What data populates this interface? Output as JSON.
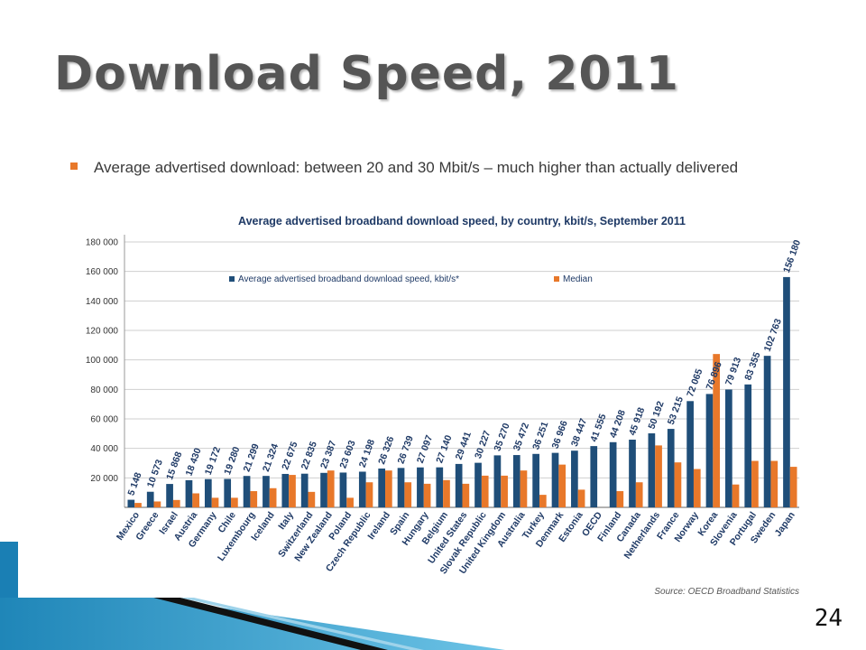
{
  "slide": {
    "title": "Download Speed, 2011",
    "bullet": "Average advertised download: between 20 and 30 Mbit/s – much higher than actually delivered",
    "page_number": "24"
  },
  "colors": {
    "average": "#1f4e79",
    "median": "#e8782a",
    "bullet": "#e8782a"
  },
  "chart_data": {
    "type": "bar",
    "title": "Average advertised broadband download speed, by country, kbit/s, September 2011",
    "source": "Source:  OECD Broadband Statistics",
    "legend_position": "top-center",
    "ylim": [
      0,
      180000
    ],
    "yticks": [
      "180 000",
      "160 000",
      "140 000",
      "120 000",
      "100 000",
      "80 000",
      "60 000",
      "40 000",
      "20 000"
    ],
    "categories": [
      "Mexico",
      "Greece",
      "Israel",
      "Austria",
      "Germany",
      "Chile",
      "Luxembourg",
      "Iceland",
      "Italy",
      "Switzerland",
      "New Zealand",
      "Poland",
      "Czech Republic",
      "Ireland",
      "Spain",
      "Hungary",
      "Belgium",
      "United States",
      "Slovak Republic",
      "United Kingdom",
      "Australia",
      "Turkey",
      "Denmark",
      "Estonia",
      "OECD",
      "Finland",
      "Canada",
      "Netherlands",
      "France",
      "Norway",
      "Korea",
      "Slovenia",
      "Portugal",
      "Sweden",
      "Japan"
    ],
    "series": [
      {
        "name": "Average advertised broadband download speed, kbit/s*",
        "values": [
          5148,
          10573,
          15868,
          18430,
          19172,
          19280,
          21299,
          21324,
          22675,
          22835,
          23387,
          23603,
          24198,
          26326,
          26739,
          27097,
          27140,
          29441,
          30227,
          35270,
          35472,
          36251,
          36966,
          38447,
          41555,
          44208,
          45918,
          50192,
          53215,
          72065,
          76896,
          79913,
          83355,
          102763,
          156180
        ],
        "labels": [
          "5 148",
          "10 573",
          "15 868",
          "18 430",
          "19 172",
          "19 280",
          "21 299",
          "21 324",
          "22 675",
          "22 835",
          "23 387",
          "23 603",
          "24 198",
          "26 326",
          "26 739",
          "27 097",
          "27 140",
          "29 441",
          "30 227",
          "35 270",
          "35 472",
          "36 251",
          "36 966",
          "38 447",
          "41 555",
          "44 208",
          "45 918",
          "50 192",
          "53 215",
          "72 065",
          "76 896",
          "79 913",
          "83 355",
          "102 763",
          "156 180"
        ]
      },
      {
        "name": "Median",
        "values": [
          3000,
          4000,
          5000,
          9500,
          6500,
          6500,
          11000,
          13000,
          22000,
          10500,
          25000,
          6500,
          17000,
          25000,
          17000,
          16000,
          18500,
          16000,
          21500,
          21500,
          25000,
          8500,
          29000,
          12000,
          null,
          11000,
          17000,
          42000,
          30500,
          26000,
          104000,
          15500,
          31500,
          31500,
          27500
        ]
      }
    ]
  }
}
